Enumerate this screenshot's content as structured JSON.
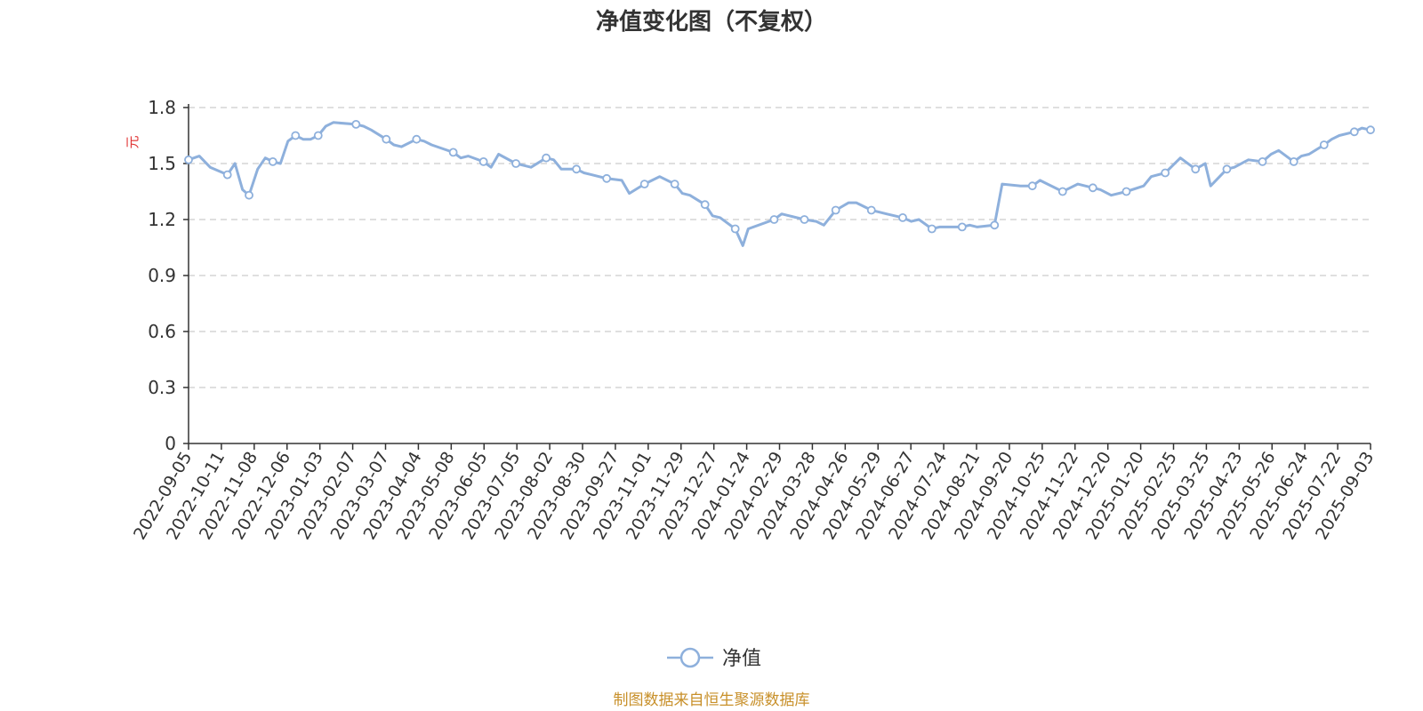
{
  "chart_data": {
    "type": "line",
    "title": "净值变化图（不复权）",
    "y_unit": "元",
    "ylim": [
      0,
      1.8
    ],
    "y_ticks": [
      "0",
      "0.3",
      "0.6",
      "0.9",
      "1.2",
      "1.5",
      "1.8"
    ],
    "x_tick_labels": [
      "2022-09-05",
      "2022-10-11",
      "2022-11-08",
      "2022-12-06",
      "2023-01-03",
      "2023-02-07",
      "2023-03-07",
      "2023-04-04",
      "2023-05-08",
      "2023-06-05",
      "2023-07-05",
      "2023-08-02",
      "2023-08-30",
      "2023-09-27",
      "2023-11-01",
      "2023-11-29",
      "2023-12-27",
      "2024-01-24",
      "2024-02-29",
      "2024-03-28",
      "2024-04-26",
      "2024-05-29",
      "2024-06-27",
      "2024-07-24",
      "2024-08-21",
      "2024-09-20",
      "2024-10-25",
      "2024-11-22",
      "2024-12-20",
      "2025-01-20",
      "2025-02-25",
      "2025-03-25",
      "2025-04-23",
      "2025-05-26",
      "2025-06-24",
      "2025-07-22",
      "2025-09-03"
    ],
    "grid": true,
    "legend_position": "bottom-center",
    "series": [
      {
        "name": "净值",
        "color": "#8eb0dc",
        "x": [
          "2022-09-05",
          "2022-09-15",
          "2022-09-25",
          "2022-10-11",
          "2022-10-18",
          "2022-10-25",
          "2022-10-31",
          "2022-11-08",
          "2022-11-15",
          "2022-11-22",
          "2022-11-29",
          "2022-12-06",
          "2022-12-13",
          "2022-12-20",
          "2022-12-27",
          "2023-01-03",
          "2023-01-10",
          "2023-01-17",
          "2023-02-07",
          "2023-02-14",
          "2023-02-21",
          "2023-03-07",
          "2023-03-14",
          "2023-03-21",
          "2023-04-04",
          "2023-04-11",
          "2023-04-18",
          "2023-05-08",
          "2023-05-15",
          "2023-05-22",
          "2023-06-05",
          "2023-06-12",
          "2023-06-19",
          "2023-07-05",
          "2023-07-12",
          "2023-07-19",
          "2023-08-02",
          "2023-08-09",
          "2023-08-16",
          "2023-08-30",
          "2023-09-06",
          "2023-09-13",
          "2023-09-27",
          "2023-10-11",
          "2023-10-18",
          "2023-11-01",
          "2023-11-08",
          "2023-11-15",
          "2023-11-29",
          "2023-12-06",
          "2023-12-13",
          "2023-12-27",
          "2024-01-03",
          "2024-01-10",
          "2024-01-24",
          "2024-01-31",
          "2024-02-05",
          "2024-02-29",
          "2024-03-07",
          "2024-03-14",
          "2024-03-28",
          "2024-04-08",
          "2024-04-15",
          "2024-04-26",
          "2024-05-08",
          "2024-05-15",
          "2024-05-29",
          "2024-06-05",
          "2024-06-12",
          "2024-06-27",
          "2024-07-05",
          "2024-07-12",
          "2024-07-24",
          "2024-07-31",
          "2024-08-07",
          "2024-08-21",
          "2024-08-28",
          "2024-09-04",
          "2024-09-20",
          "2024-09-27",
          "2024-10-14",
          "2024-10-25",
          "2024-11-01",
          "2024-11-08",
          "2024-11-22",
          "2024-11-29",
          "2024-12-06",
          "2024-12-20",
          "2024-12-27",
          "2025-01-06",
          "2025-01-20",
          "2025-02-05",
          "2025-02-12",
          "2025-02-25",
          "2025-03-04",
          "2025-03-11",
          "2025-03-25",
          "2025-04-03",
          "2025-04-08",
          "2025-04-23",
          "2025-04-30",
          "2025-05-13",
          "2025-05-26",
          "2025-06-03",
          "2025-06-10",
          "2025-06-24",
          "2025-07-01",
          "2025-07-08",
          "2025-07-22",
          "2025-07-29",
          "2025-08-05",
          "2025-08-19",
          "2025-08-26",
          "2025-09-03"
        ],
        "y": [
          1.52,
          1.54,
          1.48,
          1.44,
          1.5,
          1.36,
          1.33,
          1.47,
          1.53,
          1.51,
          1.5,
          1.62,
          1.65,
          1.63,
          1.63,
          1.65,
          1.7,
          1.72,
          1.71,
          1.7,
          1.68,
          1.63,
          1.6,
          1.59,
          1.63,
          1.62,
          1.6,
          1.56,
          1.53,
          1.54,
          1.51,
          1.48,
          1.55,
          1.5,
          1.49,
          1.48,
          1.53,
          1.52,
          1.47,
          1.47,
          1.45,
          1.44,
          1.42,
          1.41,
          1.34,
          1.39,
          1.41,
          1.43,
          1.39,
          1.34,
          1.33,
          1.28,
          1.22,
          1.21,
          1.15,
          1.06,
          1.15,
          1.2,
          1.23,
          1.22,
          1.2,
          1.19,
          1.17,
          1.25,
          1.29,
          1.29,
          1.25,
          1.24,
          1.23,
          1.21,
          1.19,
          1.2,
          1.15,
          1.16,
          1.16,
          1.16,
          1.17,
          1.16,
          1.17,
          1.39,
          1.38,
          1.38,
          1.41,
          1.39,
          1.35,
          1.37,
          1.39,
          1.37,
          1.36,
          1.33,
          1.35,
          1.38,
          1.43,
          1.45,
          1.49,
          1.53,
          1.47,
          1.5,
          1.38,
          1.47,
          1.48,
          1.52,
          1.51,
          1.55,
          1.57,
          1.51,
          1.54,
          1.55,
          1.6,
          1.63,
          1.65,
          1.67,
          1.69,
          1.68
        ]
      }
    ]
  },
  "source_text": "制图数据来自恒生聚源数据库",
  "colors": {
    "axis": "#333333",
    "grid": "#cccccc",
    "unit": "#e03030",
    "source": "#c8902a"
  }
}
